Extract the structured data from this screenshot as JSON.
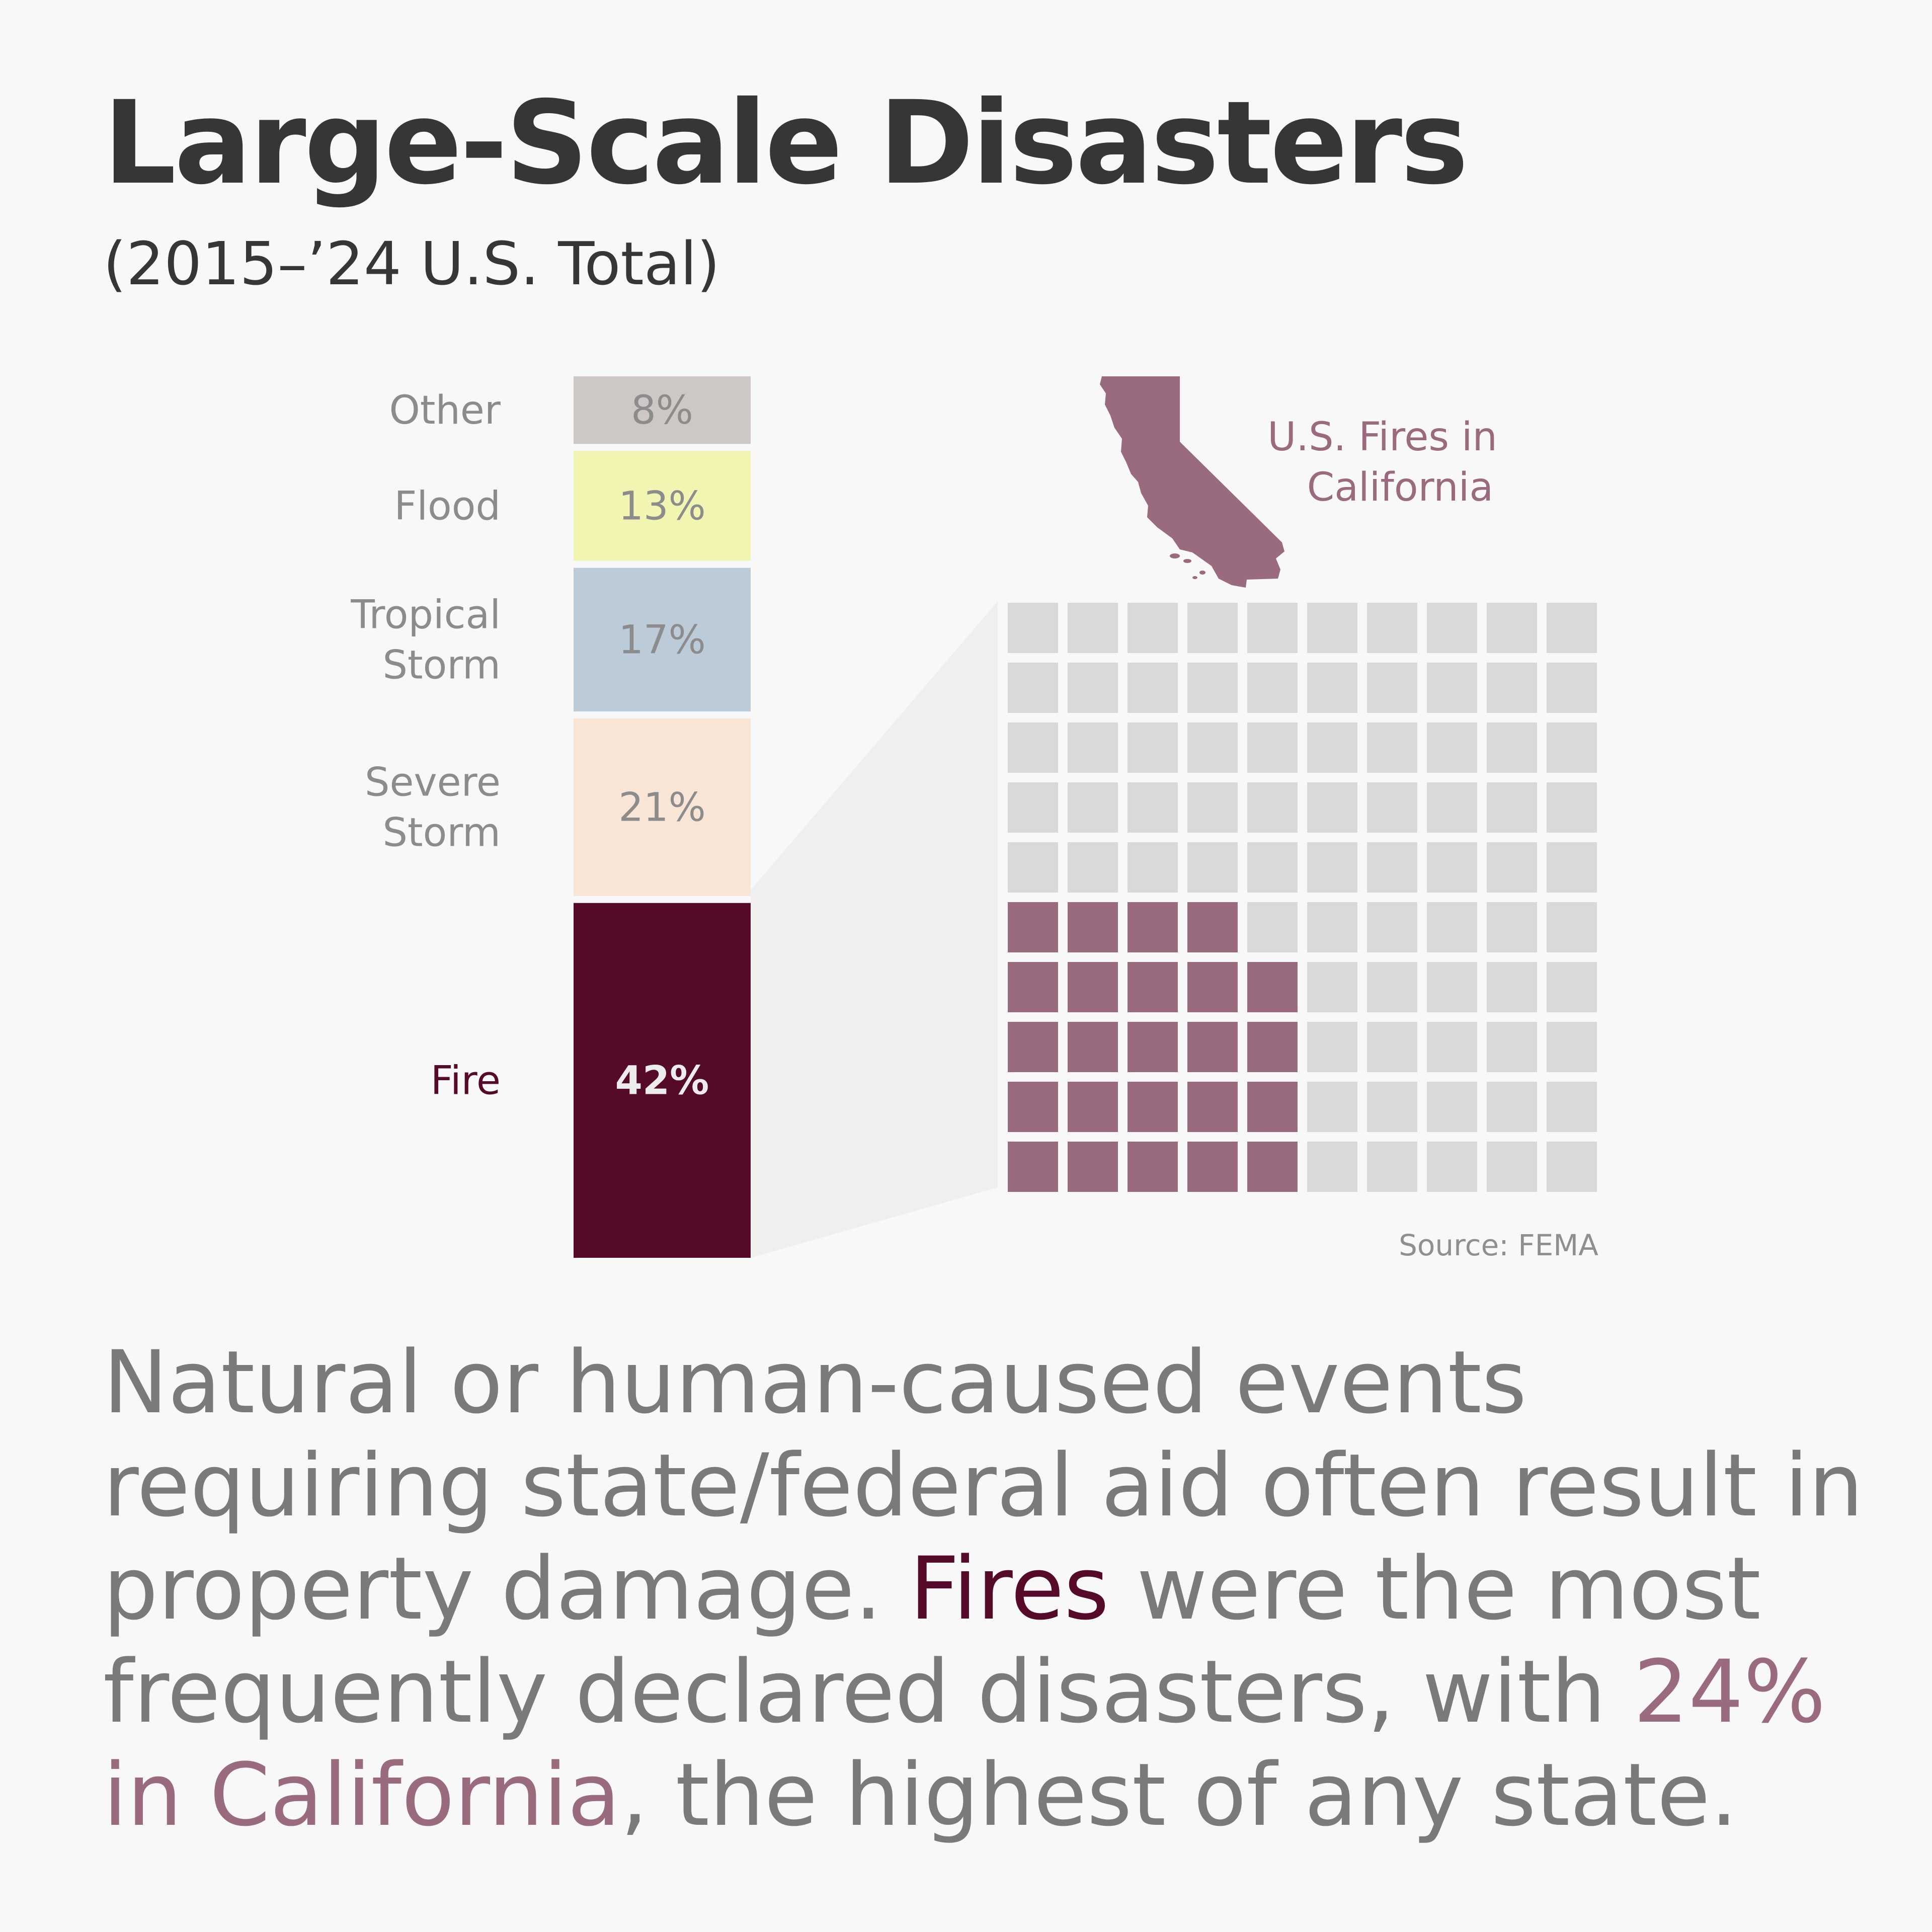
{
  "title": "Large-Scale Disasters",
  "subtitle": "(2015–’24 U.S. Total)",
  "chart_data": [
    {
      "type": "bar",
      "stacked": true,
      "orientation": "vertical-stack",
      "unit": "%",
      "categories": [
        "Fire",
        "Severe Storm",
        "Tropical Storm",
        "Flood",
        "Other"
      ],
      "category_lines": [
        [
          "Fire"
        ],
        [
          "Severe",
          "Storm"
        ],
        [
          "Tropical",
          "Storm"
        ],
        [
          "Flood"
        ],
        [
          "Other"
        ]
      ],
      "values": [
        42,
        21,
        17,
        13,
        8
      ],
      "labels": [
        "42%",
        "21%",
        "17%",
        "13%",
        "8%"
      ],
      "colors": [
        "#560a29",
        "#f8e5d6",
        "#bbcbd8",
        "#f2f4b1",
        "#cdc8c6"
      ],
      "highlight": "Fire"
    },
    {
      "type": "waffle",
      "title_lines": [
        "U.S. Fires in",
        "California"
      ],
      "total": 100,
      "highlighted": 24,
      "grid": {
        "rows": 10,
        "cols": 10
      },
      "highlight_color": "#9a6b7e",
      "base_color": "#d9d9d9",
      "icon": "california-map-icon"
    }
  ],
  "source": "Source: FEMA",
  "body": {
    "part1": "Natural or human-caused events requiring state/federal aid often result in property damage. ",
    "fires": "Fires",
    "part2": " were the most frequently declared disasters, with ",
    "ca": "24% in California",
    "part3": ", the highest of any state."
  }
}
